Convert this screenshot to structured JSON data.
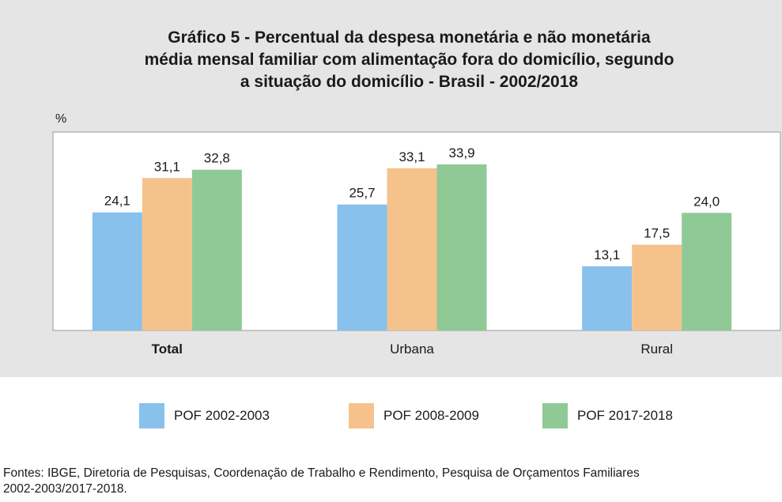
{
  "chart_data": {
    "type": "bar",
    "title": "Gráfico 5 - Percentual da despesa monetária e não monetária média mensal familiar com alimentação fora do domicílio, segundo a situação do domicílio - Brasil - 2002/2018",
    "title_lines": [
      "Gráfico 5 - Percentual da despesa monetária e não monetária",
      "média mensal familiar com alimentação fora do domicílio, segundo",
      "a situação do domicílio - Brasil - 2002/2018"
    ],
    "ylabel": "%",
    "xlabel": "",
    "categories": [
      "Total",
      "Urbana",
      "Rural"
    ],
    "series": [
      {
        "name": "POF 2002-2003",
        "values": [
          24.1,
          25.7,
          13.1
        ],
        "labels": [
          "24,1",
          "25,7",
          "13,1"
        ],
        "color": "#88c1ec"
      },
      {
        "name": "POF 2008-2009",
        "values": [
          31.1,
          33.1,
          17.5
        ],
        "labels": [
          "31,1",
          "33,1",
          "17,5"
        ],
        "color": "#f6c28c"
      },
      {
        "name": "POF 2017-2018",
        "values": [
          32.8,
          33.9,
          24.0
        ],
        "labels": [
          "32,8",
          "33,9",
          "24,0"
        ],
        "color": "#8fca96"
      }
    ],
    "ylim": [
      0,
      40.5
    ],
    "grid": false,
    "legend_position": "bottom"
  },
  "source": {
    "line1": "Fontes: IBGE, Diretoria de Pesquisas, Coordenação de Trabalho e Rendimento, Pesquisa de Orçamentos Familiares",
    "line2": "2002-2003/2017-2018."
  },
  "colors": {
    "panel_background": "#e5e5e5",
    "plot_background": "#ffffff",
    "axis": "#999999"
  }
}
